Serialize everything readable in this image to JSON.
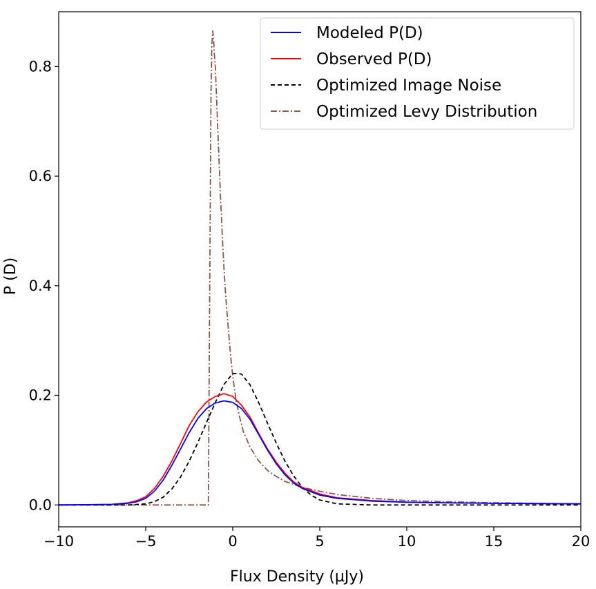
{
  "chart_data": {
    "type": "line",
    "title": "",
    "xlabel": "Flux Density  (µJy)",
    "ylabel": "P (D)",
    "xlim": [
      -10,
      20
    ],
    "ylim": [
      -0.04,
      0.9
    ],
    "xticks": [
      -10,
      -5,
      0,
      5,
      10,
      15,
      20
    ],
    "xtick_labels": [
      "−10",
      "−5",
      "0",
      "5",
      "10",
      "15",
      "20"
    ],
    "yticks": [
      0.0,
      0.2,
      0.4,
      0.6,
      0.8
    ],
    "ytick_labels": [
      "0.0",
      "0.2",
      "0.4",
      "0.6",
      "0.8"
    ],
    "grid": false,
    "legend_position": "top-right",
    "series": [
      {
        "name": "Modeled P(D)",
        "color": "#0000ff",
        "style": "solid",
        "x": [
          -10,
          -7,
          -6,
          -5.5,
          -5,
          -4.5,
          -4,
          -3.5,
          -3,
          -2.5,
          -2,
          -1.5,
          -1,
          -0.5,
          0,
          0.5,
          1,
          1.5,
          2,
          2.5,
          3,
          3.5,
          4,
          5,
          6,
          8,
          10,
          12,
          15,
          20
        ],
        "y": [
          0.0,
          0.001,
          0.003,
          0.006,
          0.012,
          0.025,
          0.045,
          0.072,
          0.102,
          0.132,
          0.158,
          0.176,
          0.186,
          0.19,
          0.187,
          0.176,
          0.156,
          0.128,
          0.1,
          0.075,
          0.055,
          0.04,
          0.03,
          0.018,
          0.012,
          0.007,
          0.005,
          0.004,
          0.003,
          0.002
        ]
      },
      {
        "name": "Observed P(D)",
        "color": "#ff0000",
        "style": "solid",
        "x": [
          -10,
          -7,
          -6,
          -5.5,
          -5,
          -4.5,
          -4,
          -3.5,
          -3,
          -2.5,
          -2,
          -1.5,
          -1,
          -0.5,
          0,
          0.5,
          1,
          1.5,
          2,
          2.5,
          3,
          3.5,
          4,
          5,
          6,
          8,
          10,
          12,
          15,
          20
        ],
        "y": [
          0.0,
          0.001,
          0.004,
          0.008,
          0.015,
          0.03,
          0.052,
          0.08,
          0.112,
          0.145,
          0.17,
          0.188,
          0.198,
          0.203,
          0.198,
          0.182,
          0.16,
          0.13,
          0.102,
          0.078,
          0.058,
          0.042,
          0.032,
          0.02,
          0.013,
          0.008,
          0.005,
          0.004,
          0.003,
          0.002
        ]
      },
      {
        "name": "Optimized Image Noise",
        "color": "#000000",
        "style": "dashed",
        "x": [
          -10,
          -6,
          -5,
          -4.5,
          -4,
          -3.5,
          -3,
          -2.5,
          -2,
          -1.5,
          -1,
          -0.5,
          0,
          0.5,
          1,
          1.5,
          2,
          2.5,
          3,
          3.5,
          4,
          4.5,
          5,
          6,
          8,
          10,
          15,
          20
        ],
        "y": [
          0.0,
          0.0,
          0.002,
          0.006,
          0.014,
          0.029,
          0.051,
          0.08,
          0.114,
          0.151,
          0.187,
          0.22,
          0.24,
          0.239,
          0.219,
          0.186,
          0.149,
          0.113,
          0.08,
          0.053,
          0.032,
          0.018,
          0.009,
          0.002,
          0.0,
          0.0,
          0.0,
          0.0
        ]
      },
      {
        "name": "Optimized Levy Distribution",
        "color": "#8c564b",
        "style": "dashdot",
        "x": [
          -10,
          -1.4,
          -1.32,
          -1.25,
          -1.2,
          -1.15,
          -1.1,
          -1.05,
          -1.0,
          -0.9,
          -0.8,
          -0.7,
          -0.6,
          -0.5,
          -0.4,
          -0.3,
          -0.2,
          -0.1,
          0.0,
          0.2,
          0.4,
          0.6,
          0.8,
          1.0,
          1.5,
          2.0,
          2.5,
          3.0,
          4.0,
          5.0,
          6.0,
          8.0,
          10.0,
          12.0,
          15.0,
          20.0
        ],
        "y": [
          0.0,
          0.0,
          0.4,
          0.75,
          0.84,
          0.865,
          0.85,
          0.82,
          0.8,
          0.72,
          0.64,
          0.56,
          0.49,
          0.43,
          0.38,
          0.34,
          0.3,
          0.265,
          0.235,
          0.19,
          0.16,
          0.135,
          0.12,
          0.105,
          0.08,
          0.063,
          0.052,
          0.043,
          0.032,
          0.025,
          0.019,
          0.012,
          0.008,
          0.006,
          0.004,
          0.002
        ]
      }
    ]
  }
}
